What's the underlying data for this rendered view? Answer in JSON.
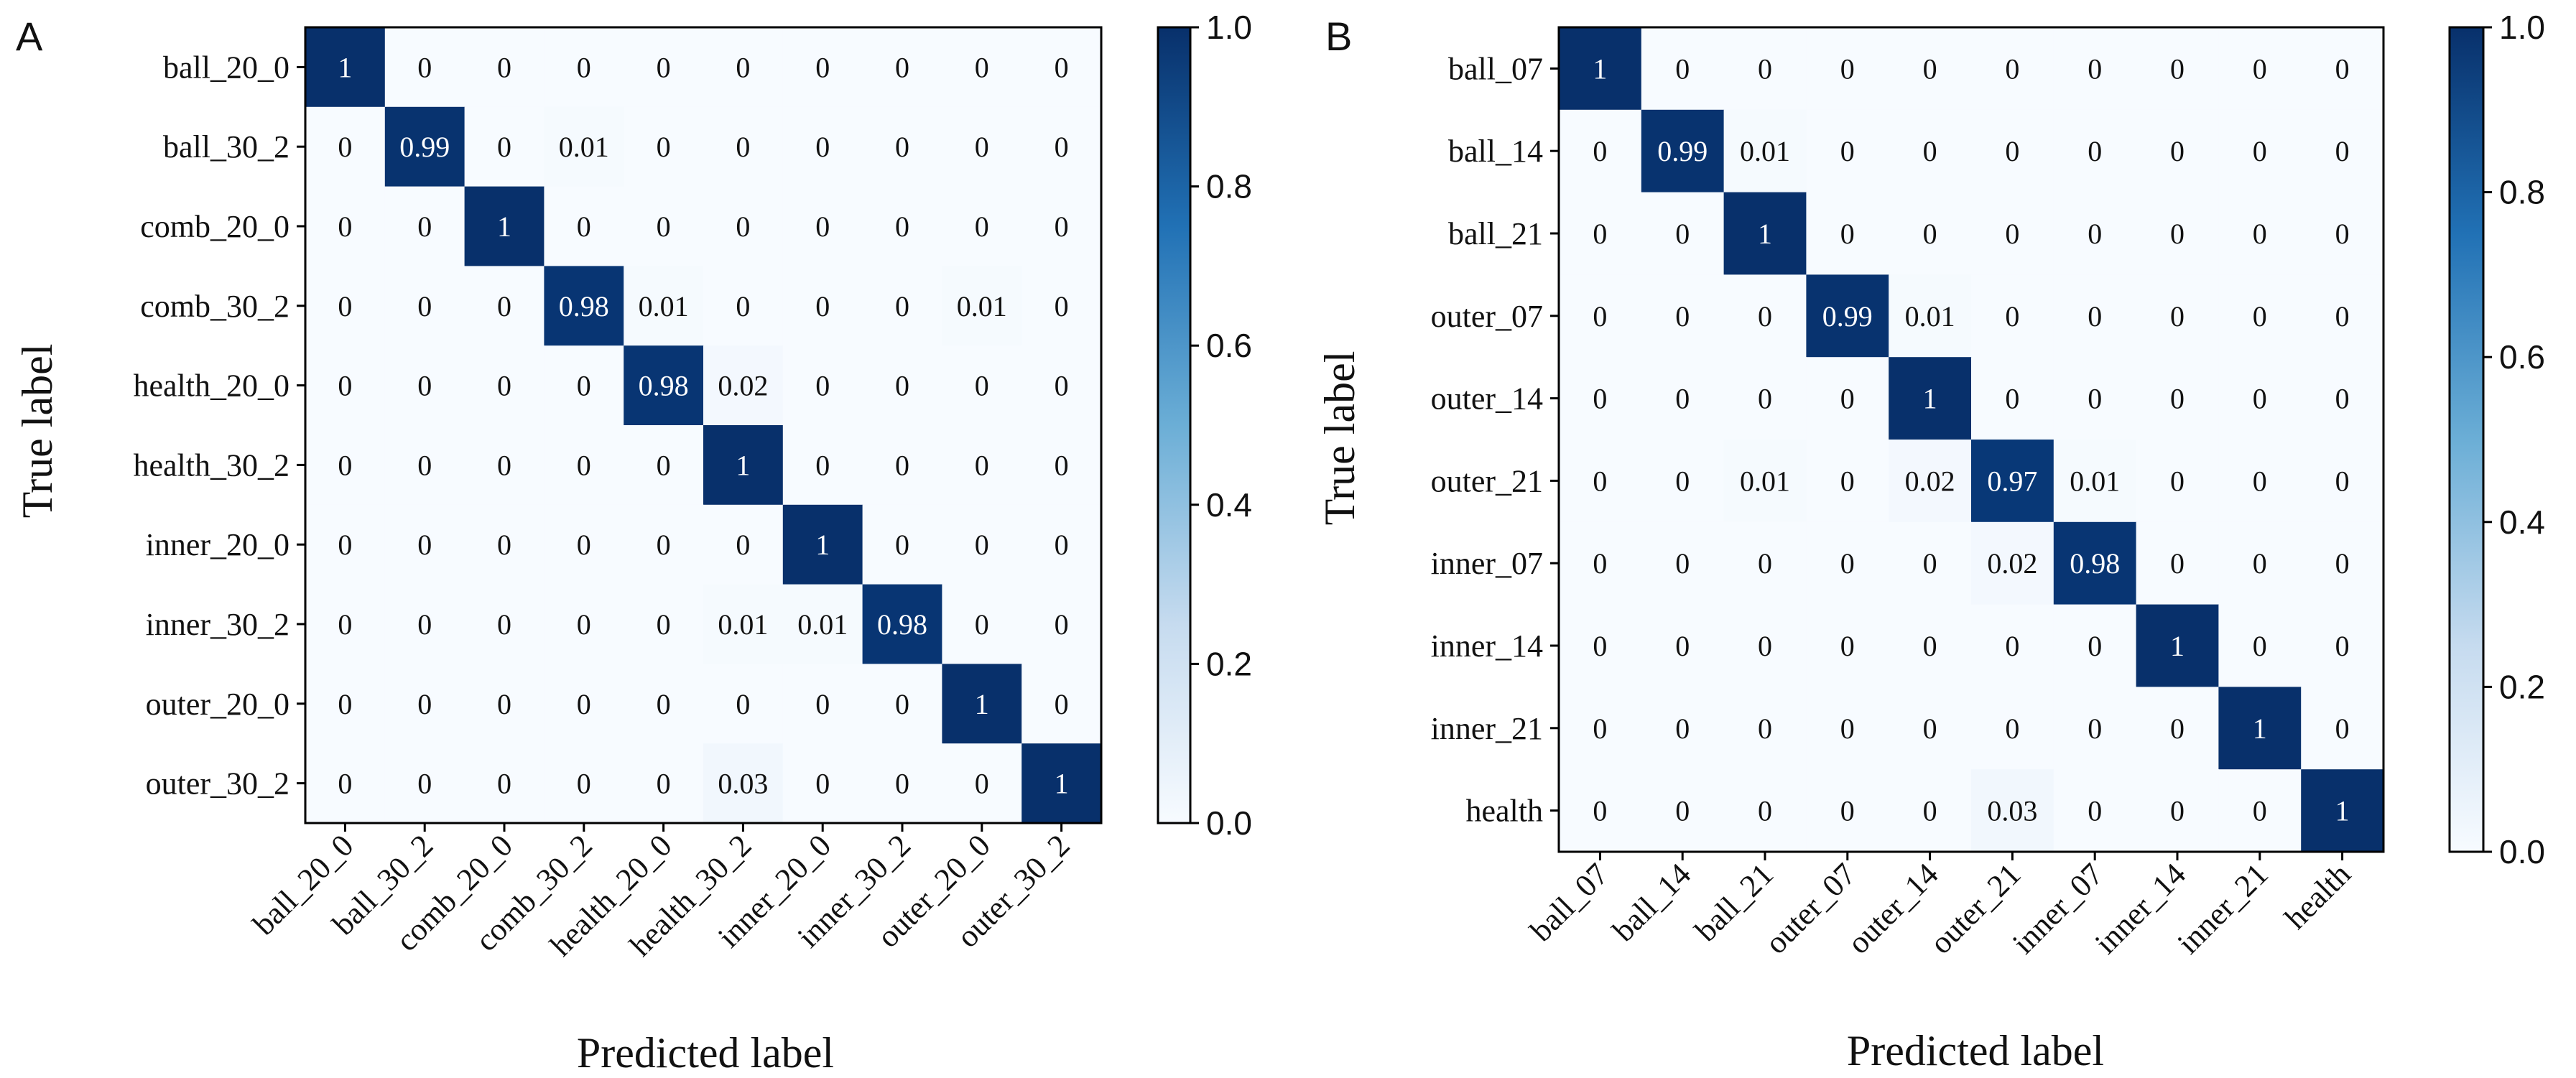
{
  "chart_data": [
    {
      "type": "heatmap",
      "panel_label": "A",
      "xlabel": "Predicted label",
      "ylabel": "True label",
      "labels": [
        "ball_20_0",
        "ball_30_2",
        "comb_20_0",
        "comb_30_2",
        "health_20_0",
        "health_30_2",
        "inner_20_0",
        "inner_30_2",
        "outer_20_0",
        "outer_30_2"
      ],
      "matrix": [
        [
          1,
          0,
          0,
          0,
          0,
          0,
          0,
          0,
          0,
          0
        ],
        [
          0,
          0.99,
          0,
          0.01,
          0,
          0,
          0,
          0,
          0,
          0
        ],
        [
          0,
          0,
          1,
          0,
          0,
          0,
          0,
          0,
          0,
          0
        ],
        [
          0,
          0,
          0,
          0.98,
          0.01,
          0,
          0,
          0,
          0.01,
          0
        ],
        [
          0,
          0,
          0,
          0,
          0.98,
          0.02,
          0,
          0,
          0,
          0
        ],
        [
          0,
          0,
          0,
          0,
          0,
          1,
          0,
          0,
          0,
          0
        ],
        [
          0,
          0,
          0,
          0,
          0,
          0,
          1,
          0,
          0,
          0
        ],
        [
          0,
          0,
          0,
          0,
          0,
          0.01,
          0.01,
          0.98,
          0,
          0
        ],
        [
          0,
          0,
          0,
          0,
          0,
          0,
          0,
          0,
          1,
          0
        ],
        [
          0,
          0,
          0,
          0,
          0,
          0.03,
          0,
          0,
          0,
          1
        ]
      ],
      "colorbar_range": [
        0,
        1
      ],
      "colorbar_ticks": [
        "0.0",
        "0.2",
        "0.4",
        "0.6",
        "0.8",
        "1.0"
      ]
    },
    {
      "type": "heatmap",
      "panel_label": "B",
      "xlabel": "Predicted label",
      "ylabel": "True label",
      "labels": [
        "ball_07",
        "ball_14",
        "ball_21",
        "outer_07",
        "outer_14",
        "outer_21",
        "inner_07",
        "inner_14",
        "inner_21",
        "health"
      ],
      "matrix": [
        [
          1,
          0,
          0,
          0,
          0,
          0,
          0,
          0,
          0,
          0
        ],
        [
          0,
          0.99,
          0.01,
          0,
          0,
          0,
          0,
          0,
          0,
          0
        ],
        [
          0,
          0,
          1,
          0,
          0,
          0,
          0,
          0,
          0,
          0
        ],
        [
          0,
          0,
          0,
          0.99,
          0.01,
          0,
          0,
          0,
          0,
          0
        ],
        [
          0,
          0,
          0,
          0,
          1,
          0,
          0,
          0,
          0,
          0
        ],
        [
          0,
          0,
          0.01,
          0,
          0.02,
          0.97,
          0.01,
          0,
          0,
          0
        ],
        [
          0,
          0,
          0,
          0,
          0,
          0.02,
          0.98,
          0,
          0,
          0
        ],
        [
          0,
          0,
          0,
          0,
          0,
          0,
          0,
          1,
          0,
          0
        ],
        [
          0,
          0,
          0,
          0,
          0,
          0,
          0,
          0,
          1,
          0
        ],
        [
          0,
          0,
          0,
          0,
          0,
          0.03,
          0,
          0,
          0,
          1
        ]
      ],
      "colorbar_range": [
        0,
        1
      ],
      "colorbar_ticks": [
        "0.0",
        "0.2",
        "0.4",
        "0.6",
        "0.8",
        "1.0"
      ]
    }
  ]
}
